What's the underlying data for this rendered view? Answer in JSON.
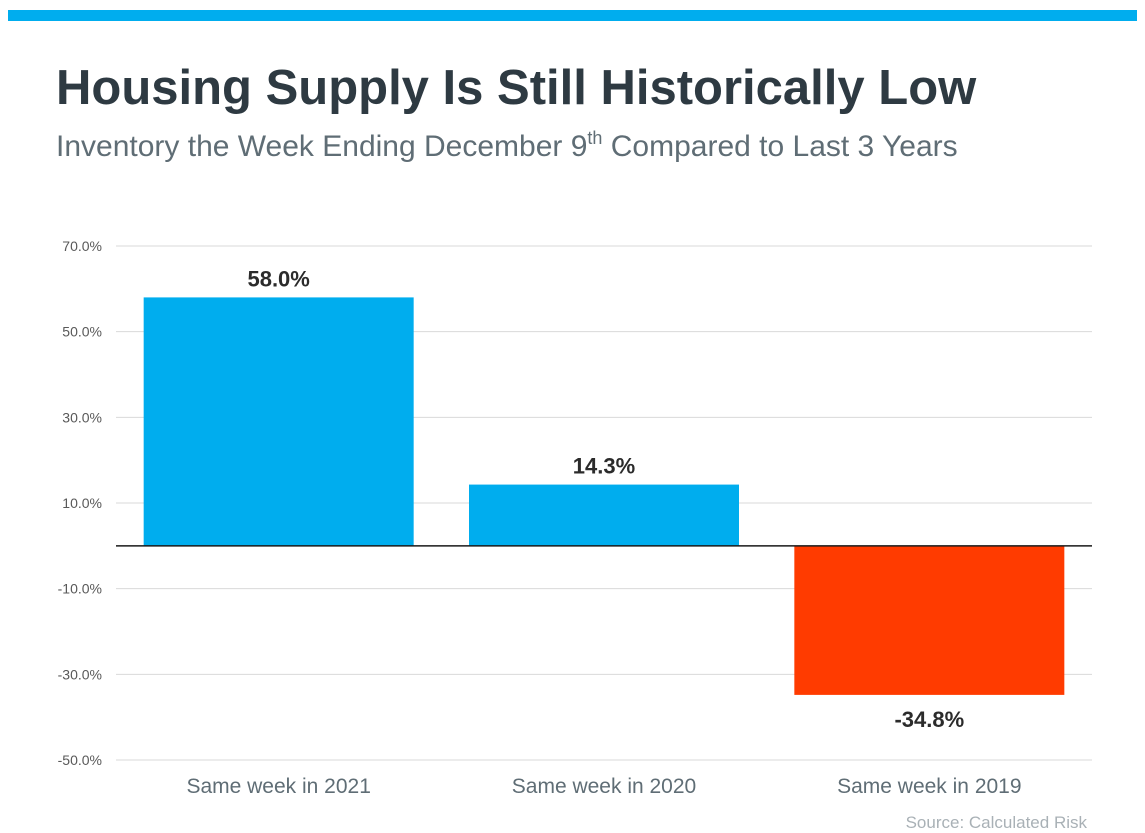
{
  "header": {
    "title": "Housing Supply Is Still Historically Low",
    "subtitle_pre": "Inventory the Week Ending December 9",
    "subtitle_sup": "th",
    "subtitle_post": " Compared to Last 3 Years"
  },
  "footer": {
    "source": "Source: Calculated Risk"
  },
  "colors": {
    "positive": "#00adee",
    "negative": "#ff3b00",
    "accent_bar": "#00adee",
    "title": "#2e3a42",
    "grid": "#d9d9d9",
    "axis_text": "#595959"
  },
  "chart_data": {
    "type": "bar",
    "title": "Housing Supply Is Still Historically Low",
    "subtitle": "Inventory the Week Ending December 9th Compared to Last 3 Years",
    "categories": [
      "Same week in 2021",
      "Same week in 2020",
      "Same week in 2019"
    ],
    "values": [
      58.0,
      14.3,
      -34.8
    ],
    "data_labels": [
      "58.0%",
      "14.3%",
      "-34.8%"
    ],
    "ylim": [
      -50,
      70
    ],
    "yticks": [
      70,
      50,
      30,
      10,
      -10,
      -30,
      -50
    ],
    "ytick_labels": [
      "70.0%",
      "50.0%",
      "30.0%",
      "10.0%",
      "-10.0%",
      "-30.0%",
      "-50.0%"
    ],
    "xlabel": "",
    "ylabel": "",
    "grid": true,
    "legend": "none"
  }
}
